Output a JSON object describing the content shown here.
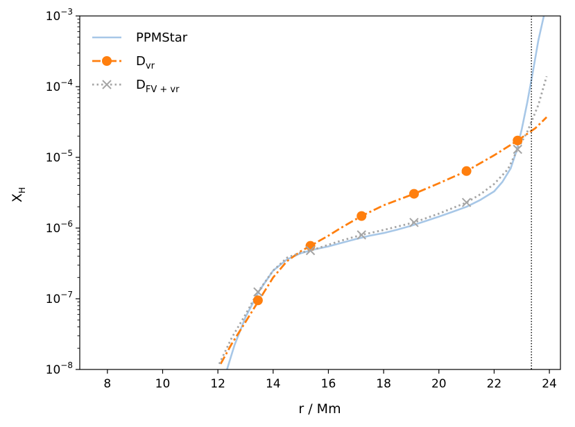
{
  "chart_data": {
    "type": "line",
    "xlabel": "r / Mm",
    "ylabel": {
      "main": "X",
      "sub": "H"
    },
    "xlim": [
      7,
      24.4
    ],
    "ylim": [
      1e-08,
      0.001
    ],
    "yscale": "log",
    "grid": false,
    "legend_position": "top-left",
    "x_ticks": [
      8,
      10,
      12,
      14,
      16,
      18,
      20,
      22,
      24
    ],
    "y_ticks": [
      {
        "value": 1e-08,
        "base": "10",
        "exp": "−8"
      },
      {
        "value": 1e-07,
        "base": "10",
        "exp": "−7"
      },
      {
        "value": 1e-06,
        "base": "10",
        "exp": "−6"
      },
      {
        "value": 1e-05,
        "base": "10",
        "exp": "−5"
      },
      {
        "value": 0.0001,
        "base": "10",
        "exp": "−4"
      },
      {
        "value": 0.001,
        "base": "10",
        "exp": "−3"
      }
    ],
    "vline": {
      "x": 23.35,
      "style": "dotted",
      "color": "#000000"
    },
    "series": [
      {
        "name": "PPMStar",
        "label_main": "PPMStar",
        "label_sub": "",
        "color": "#a7c7e7",
        "dash": "",
        "marker": "none",
        "points": [
          [
            12.33,
            1e-08
          ],
          [
            12.6,
            2.2e-08
          ],
          [
            13.0,
            5.5e-08
          ],
          [
            13.5,
            1.3e-07
          ],
          [
            14.0,
            2.5e-07
          ],
          [
            14.5,
            3.6e-07
          ],
          [
            15.0,
            4.4e-07
          ],
          [
            15.5,
            5e-07
          ],
          [
            16.0,
            5.5e-07
          ],
          [
            16.5,
            6.2e-07
          ],
          [
            17.0,
            7e-07
          ],
          [
            17.5,
            7.8e-07
          ],
          [
            18.0,
            8.5e-07
          ],
          [
            18.5,
            9.5e-07
          ],
          [
            19.0,
            1.08e-06
          ],
          [
            19.5,
            1.25e-06
          ],
          [
            20.0,
            1.45e-06
          ],
          [
            20.5,
            1.7e-06
          ],
          [
            21.0,
            2e-06
          ],
          [
            21.5,
            2.5e-06
          ],
          [
            22.0,
            3.3e-06
          ],
          [
            22.3,
            4.5e-06
          ],
          [
            22.6,
            7e-06
          ],
          [
            22.8,
            1.2e-05
          ],
          [
            23.0,
            2.5e-05
          ],
          [
            23.2,
            6e-05
          ],
          [
            23.4,
            0.00016
          ],
          [
            23.6,
            0.00045
          ],
          [
            23.8,
            0.001
          ]
        ]
      },
      {
        "name": "Dvr",
        "label_main": "D",
        "label_sub": "vr",
        "color": "#ff7f0e",
        "dash": "12 4 3 4",
        "marker": "circle",
        "points": [
          [
            12.1,
            1.2e-08
          ],
          [
            12.5,
            2.3e-08
          ],
          [
            13.0,
            4.7e-08
          ],
          [
            13.5,
            9.7e-08
          ],
          [
            14.0,
            2e-07
          ],
          [
            14.5,
            3.4e-07
          ],
          [
            15.0,
            4.7e-07
          ],
          [
            15.35,
            5.6e-07
          ],
          [
            16.0,
            7.8e-07
          ],
          [
            16.5,
            1.03e-06
          ],
          [
            17.2,
            1.48e-06
          ],
          [
            18.0,
            2.1e-06
          ],
          [
            19.1,
            3.05e-06
          ],
          [
            20.0,
            4.3e-06
          ],
          [
            21.0,
            6.4e-06
          ],
          [
            22.0,
            1.07e-05
          ],
          [
            22.85,
            1.73e-05
          ],
          [
            23.5,
            2.6e-05
          ],
          [
            23.9,
            3.7e-05
          ]
        ],
        "marker_points": [
          [
            13.45,
            9.5e-08
          ],
          [
            15.35,
            5.6e-07
          ],
          [
            17.2,
            1.48e-06
          ],
          [
            19.1,
            3.05e-06
          ],
          [
            21.0,
            6.4e-06
          ],
          [
            22.85,
            1.73e-05
          ]
        ]
      },
      {
        "name": "DFV+vr",
        "label_main": "D",
        "label_sub": "FV + vr",
        "color": "#a5a5a5",
        "dash": "2.5 4",
        "marker": "x",
        "points": [
          [
            12.05,
            1.2e-08
          ],
          [
            12.5,
            2.8e-08
          ],
          [
            13.0,
            6e-08
          ],
          [
            13.45,
            1.25e-07
          ],
          [
            14.0,
            2.5e-07
          ],
          [
            14.5,
            3.8e-07
          ],
          [
            15.0,
            4.5e-07
          ],
          [
            15.35,
            4.8e-07
          ],
          [
            16.0,
            5.8e-07
          ],
          [
            16.5,
            6.7e-07
          ],
          [
            17.2,
            8e-07
          ],
          [
            18.0,
            9.4e-07
          ],
          [
            19.1,
            1.2e-06
          ],
          [
            20.0,
            1.6e-06
          ],
          [
            21.0,
            2.3e-06
          ],
          [
            21.5,
            3e-06
          ],
          [
            22.0,
            4.2e-06
          ],
          [
            22.5,
            6.8e-06
          ],
          [
            22.85,
            1.3e-05
          ],
          [
            23.2,
            2.3e-05
          ],
          [
            23.6,
            5.5e-05
          ],
          [
            23.9,
            0.00014
          ]
        ],
        "marker_points": [
          [
            13.45,
            1.25e-07
          ],
          [
            15.35,
            4.8e-07
          ],
          [
            17.2,
            8e-07
          ],
          [
            19.1,
            1.2e-06
          ],
          [
            21.0,
            2.3e-06
          ],
          [
            22.85,
            1.3e-05
          ]
        ]
      }
    ]
  }
}
